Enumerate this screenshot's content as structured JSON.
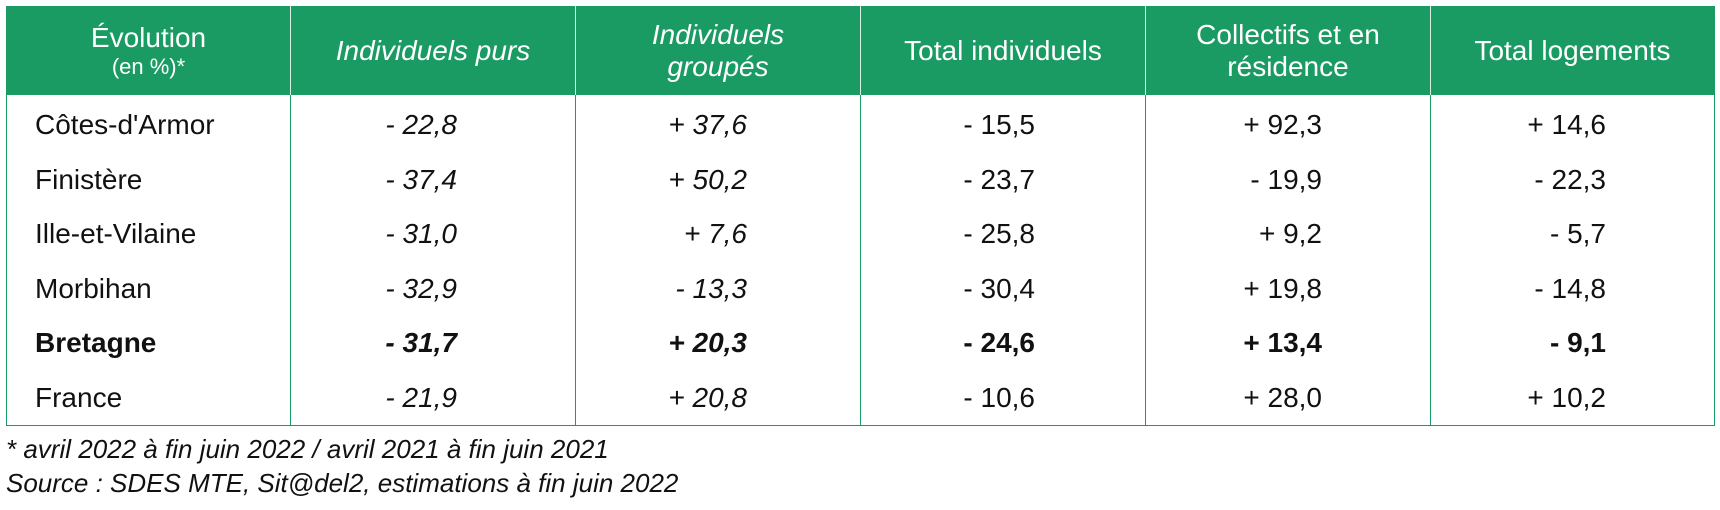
{
  "table": {
    "headers": [
      {
        "line1": "Évolution",
        "line2": "(en %)*"
      },
      {
        "line1": "Individuels purs",
        "line2": ""
      },
      {
        "line1": "Individuels",
        "line2": "groupés"
      },
      {
        "line1": "Total individuels",
        "line2": ""
      },
      {
        "line1": "Collectifs et en",
        "line2": "résidence"
      },
      {
        "line1": "Total logements",
        "line2": ""
      }
    ],
    "rows": [
      {
        "label": "Côtes-d'Armor",
        "values": [
          "- 22,8",
          "+ 37,6",
          "- 15,5",
          "+ 92,3",
          "+ 14,6"
        ]
      },
      {
        "label": "Finistère",
        "values": [
          "- 37,4",
          "+ 50,2",
          "- 23,7",
          "- 19,9",
          "- 22,3"
        ]
      },
      {
        "label": "Ille-et-Vilaine",
        "values": [
          "- 31,0",
          "+ 7,6",
          "- 25,8",
          "+ 9,2",
          "- 5,7"
        ]
      },
      {
        "label": "Morbihan",
        "values": [
          "- 32,9",
          "- 13,3",
          "- 30,4",
          "+ 19,8",
          "- 14,8"
        ]
      },
      {
        "label": "Bretagne",
        "values": [
          "- 31,7",
          "+ 20,3",
          "- 24,6",
          "+ 13,4",
          "- 9,1"
        ]
      },
      {
        "label": "France",
        "values": [
          "- 21,9",
          "+ 20,8",
          "- 10,6",
          "+ 28,0",
          "+ 10,2"
        ]
      }
    ]
  },
  "footnotes": {
    "period": "* avril 2022 à fin juin 2022 / avril 2021 à fin juin 2021",
    "source": "Source : SDES MTE, Sit@del2, estimations à fin juin 2022"
  },
  "colors": {
    "header_bg": "#1a9b63",
    "header_text": "#ffffff",
    "border": "#1a9b63"
  }
}
